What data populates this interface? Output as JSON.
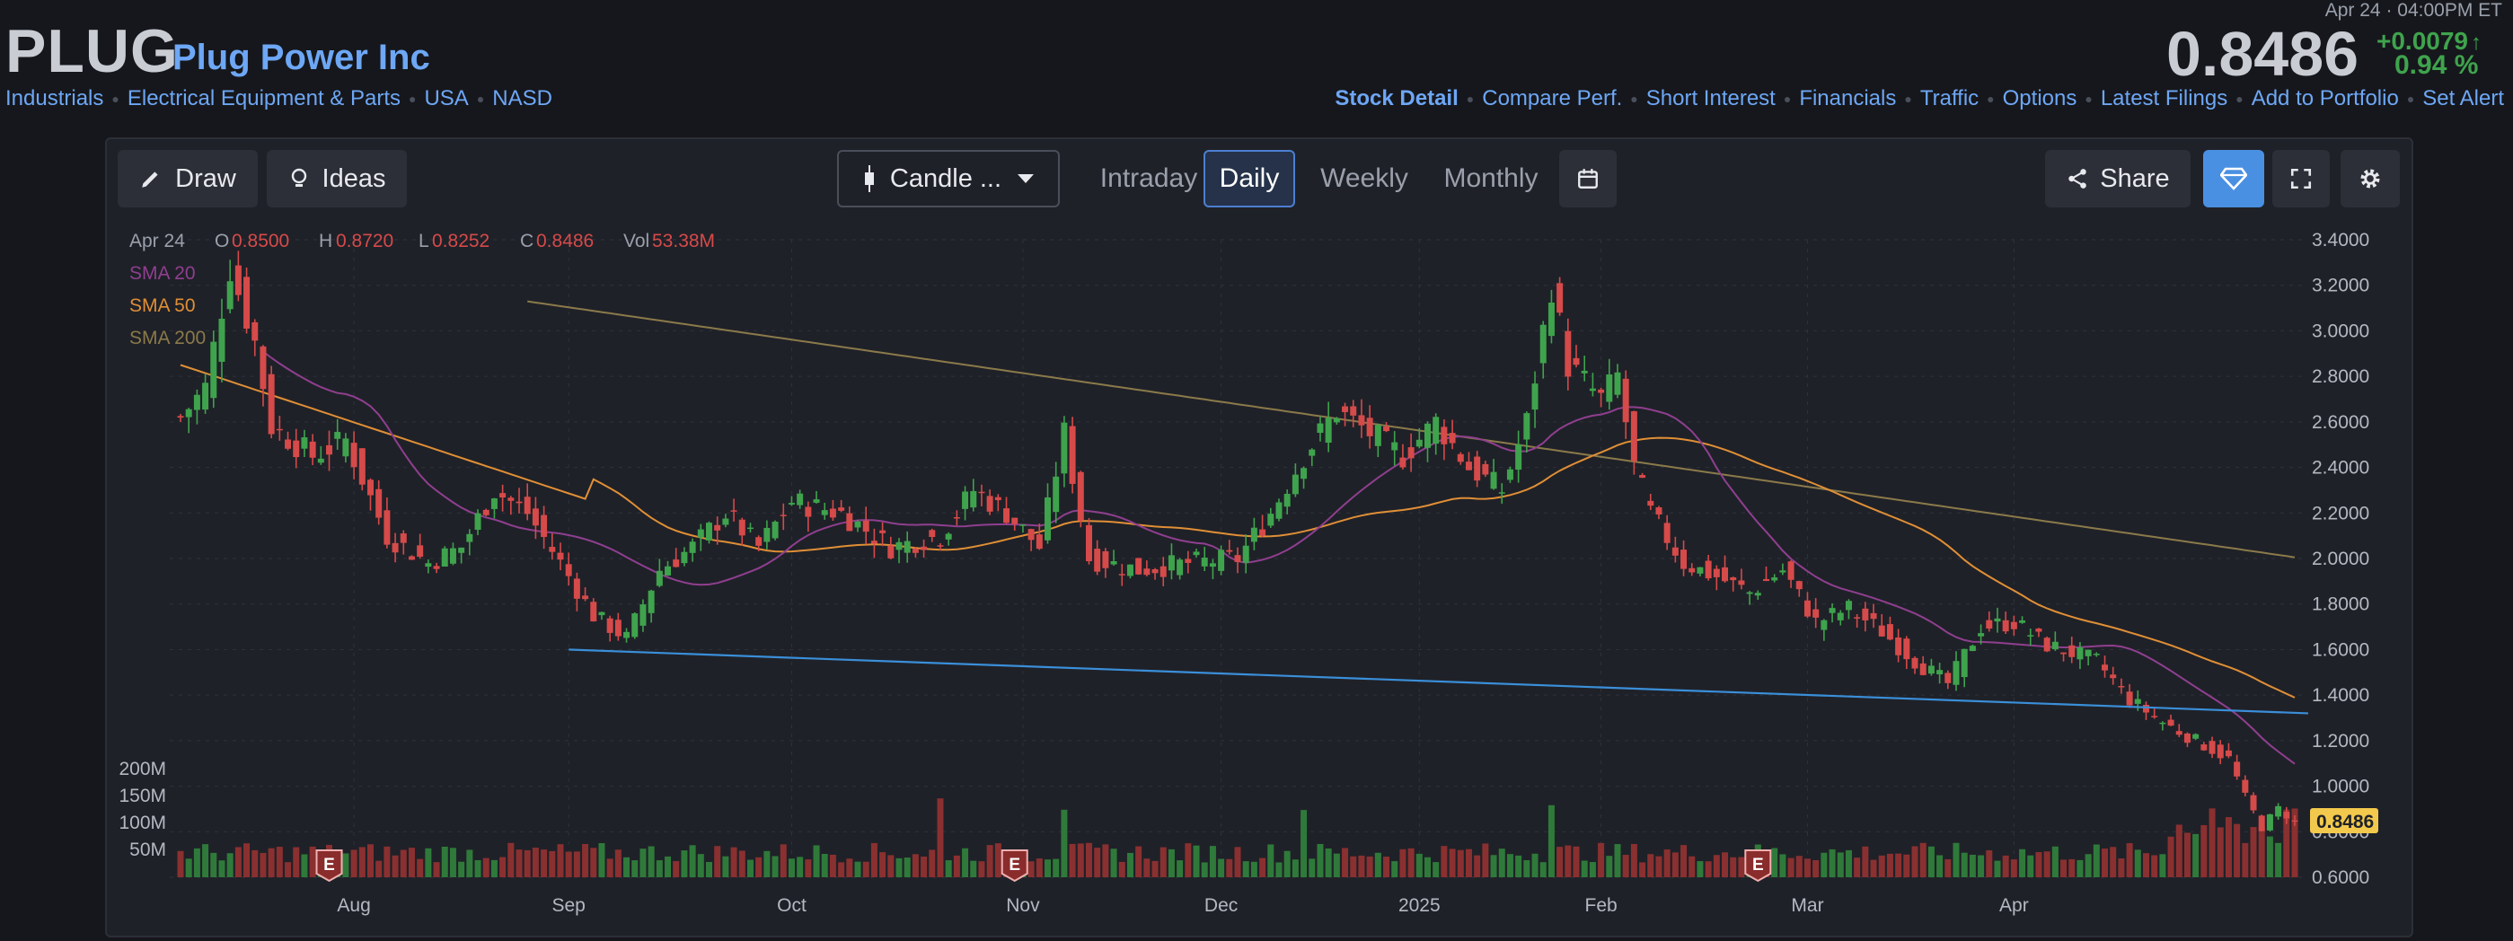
{
  "header": {
    "ticker": "PLUG",
    "company": "Plug Power Inc",
    "crumbs": [
      "Industrials",
      "Electrical Equipment & Parts",
      "USA",
      "NASD"
    ],
    "datetime": "Apr 24 · 04:00PM ET",
    "price": "0.8486",
    "change": "+0.0079",
    "change_arrow": "↑",
    "change_pct": "0.94 %",
    "links": [
      "Stock Detail",
      "Compare Perf.",
      "Short Interest",
      "Financials",
      "Traffic",
      "Options",
      "Latest Filings",
      "Add to Portfolio",
      "Set Alert"
    ]
  },
  "toolbar": {
    "draw": "Draw",
    "ideas": "Ideas",
    "chart_type": "Candle ...",
    "periods": [
      "Intraday",
      "Daily",
      "Weekly",
      "Monthly"
    ],
    "selected_period": "Daily",
    "share": "Share"
  },
  "colors": {
    "up": "#3fa34d",
    "down": "#d64a4a",
    "sma20": "#8f3f8f",
    "sma50": "#e08f36",
    "sma200": "#8a7a4a",
    "trendline": "#3a8fd9",
    "accent": "#4a90e2"
  },
  "icons": [
    "pencil-icon",
    "lightbulb-icon",
    "candle-icon",
    "caret-down-icon",
    "calendar-icon",
    "share-icon",
    "diamond-icon",
    "fullscreen-icon",
    "gear-icon"
  ],
  "chart_data": {
    "type": "candlestick",
    "ohlc_label": {
      "date": "Apr 24",
      "o": "0.8500",
      "h": "0.8720",
      "l": "0.8252",
      "c": "0.8486",
      "vol": "53.38M"
    },
    "legend": [
      "SMA 20",
      "SMA 50",
      "SMA 200"
    ],
    "x_ticks": [
      "Aug",
      "Sep",
      "Oct",
      "Nov",
      "Dec",
      "2025",
      "Feb",
      "Mar",
      "Apr"
    ],
    "y_ticks": [
      "3.4000",
      "3.2000",
      "3.0000",
      "2.8000",
      "2.6000",
      "2.4000",
      "2.2000",
      "2.0000",
      "1.8000",
      "1.6000",
      "1.4000",
      "1.2000",
      "1.0000",
      "0.8000",
      "0.6000"
    ],
    "ylim": [
      0.6,
      3.4
    ],
    "vol_ticks": [
      "200M",
      "150M",
      "100M",
      "50M"
    ],
    "last_price_label": "0.8486",
    "earnings_marker": "E",
    "close_anchors": [
      {
        "d": 0,
        "v": 2.62
      },
      {
        "d": 3,
        "v": 2.75
      },
      {
        "d": 6,
        "v": 3.28
      },
      {
        "d": 9,
        "v": 2.95
      },
      {
        "d": 11,
        "v": 2.58
      },
      {
        "d": 16,
        "v": 2.45
      },
      {
        "d": 20,
        "v": 2.52
      },
      {
        "d": 25,
        "v": 2.1
      },
      {
        "d": 30,
        "v": 1.98
      },
      {
        "d": 34,
        "v": 2.05
      },
      {
        "d": 38,
        "v": 2.3
      },
      {
        "d": 42,
        "v": 2.2
      },
      {
        "d": 46,
        "v": 1.98
      },
      {
        "d": 50,
        "v": 1.75
      },
      {
        "d": 54,
        "v": 1.65
      },
      {
        "d": 58,
        "v": 1.95
      },
      {
        "d": 62,
        "v": 2.05
      },
      {
        "d": 66,
        "v": 2.2
      },
      {
        "d": 70,
        "v": 2.05
      },
      {
        "d": 74,
        "v": 2.25
      },
      {
        "d": 80,
        "v": 2.2
      },
      {
        "d": 86,
        "v": 2.05
      },
      {
        "d": 92,
        "v": 2.1
      },
      {
        "d": 96,
        "v": 2.3
      },
      {
        "d": 100,
        "v": 2.2
      },
      {
        "d": 104,
        "v": 2.05
      },
      {
        "d": 107,
        "v": 2.55
      },
      {
        "d": 110,
        "v": 2.0
      },
      {
        "d": 116,
        "v": 1.95
      },
      {
        "d": 122,
        "v": 1.98
      },
      {
        "d": 128,
        "v": 2.0
      },
      {
        "d": 132,
        "v": 2.2
      },
      {
        "d": 136,
        "v": 2.45
      },
      {
        "d": 140,
        "v": 2.65
      },
      {
        "d": 144,
        "v": 2.55
      },
      {
        "d": 148,
        "v": 2.45
      },
      {
        "d": 152,
        "v": 2.6
      },
      {
        "d": 156,
        "v": 2.4
      },
      {
        "d": 160,
        "v": 2.3
      },
      {
        "d": 163,
        "v": 2.6
      },
      {
        "d": 166,
        "v": 3.2
      },
      {
        "d": 168,
        "v": 2.85
      },
      {
        "d": 172,
        "v": 2.7
      },
      {
        "d": 174,
        "v": 2.8
      },
      {
        "d": 176,
        "v": 2.4
      },
      {
        "d": 178,
        "v": 2.2
      },
      {
        "d": 182,
        "v": 1.98
      },
      {
        "d": 186,
        "v": 1.92
      },
      {
        "d": 190,
        "v": 1.85
      },
      {
        "d": 194,
        "v": 1.95
      },
      {
        "d": 198,
        "v": 1.72
      },
      {
        "d": 202,
        "v": 1.78
      },
      {
        "d": 206,
        "v": 1.68
      },
      {
        "d": 210,
        "v": 1.55
      },
      {
        "d": 214,
        "v": 1.45
      },
      {
        "d": 218,
        "v": 1.7
      },
      {
        "d": 222,
        "v": 1.72
      },
      {
        "d": 226,
        "v": 1.62
      },
      {
        "d": 232,
        "v": 1.55
      },
      {
        "d": 236,
        "v": 1.38
      },
      {
        "d": 240,
        "v": 1.28
      },
      {
        "d": 244,
        "v": 1.2
      },
      {
        "d": 248,
        "v": 1.12
      },
      {
        "d": 250,
        "v": 0.95
      },
      {
        "d": 252,
        "v": 0.82
      },
      {
        "d": 254,
        "v": 0.9
      },
      {
        "d": 256,
        "v": 0.8486
      }
    ],
    "trendline": {
      "x1": "Sep",
      "y1": 1.6,
      "x2": "Apr 24",
      "y2": 1.32
    }
  }
}
